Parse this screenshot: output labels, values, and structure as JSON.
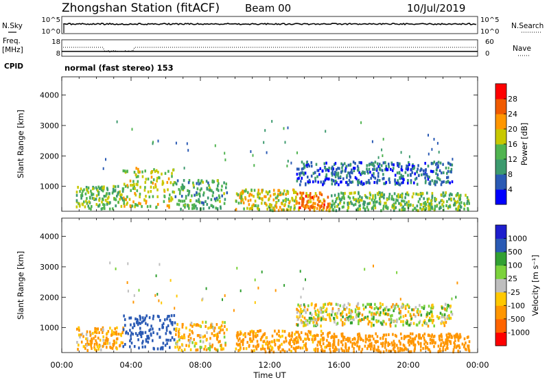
{
  "header": {
    "title": "Zhongshan Station (fitACF)",
    "beam": "Beam 00",
    "date": "10/Jul/2019"
  },
  "labels": {
    "nsky": "N.Sky",
    "freq": "Freq.",
    "mhz": "[MHz]",
    "cpid": "CPID",
    "nsearch": "N.Search",
    "nave": "Nave",
    "mode": "normal (fast stereo) 153",
    "sky_tick_hi": "10^5",
    "sky_tick_lo": "10^0",
    "freq_tick_hi": "18",
    "freq_tick_lo": "8",
    "nave_tick_hi": "60",
    "nave_tick_lo": "0"
  },
  "colors": {
    "power": [
      "#0000ff",
      "#2a5ab4",
      "#3c9a6e",
      "#50b450",
      "#c8c800",
      "#ff9600",
      "#f05a00",
      "#ff0000"
    ],
    "velocity": [
      "#ff0000",
      "#ff6400",
      "#ff9600",
      "#ffc800",
      "#bebebe",
      "#7cd23c",
      "#32a032",
      "#2a5ab4",
      "#1e1ecd"
    ]
  },
  "chart_data": [
    {
      "type": "heatmap",
      "name": "power",
      "ylabel": "Slant Range [km]",
      "xlabel": "",
      "ylim": [
        180,
        4600
      ],
      "yticks": [
        1000,
        2000,
        3000,
        4000
      ],
      "x_tick_labels": [
        "00:00",
        "04:00",
        "08:00",
        "12:00",
        "16:00",
        "20:00",
        "00:00"
      ],
      "colorbar": {
        "label": "Power [dB]",
        "ticks": [
          "4",
          "8",
          "12",
          "16",
          "20",
          "24",
          "28"
        ],
        "range": [
          0,
          30
        ]
      },
      "echo_regions": [
        {
          "t_start": 0.8,
          "t_end": 3.5,
          "r_min": 250,
          "r_max": 1000,
          "level": 14
        },
        {
          "t_start": 3.5,
          "t_end": 6.5,
          "r_min": 300,
          "r_max": 1600,
          "level": 17
        },
        {
          "t_start": 6.5,
          "t_end": 9.5,
          "r_min": 250,
          "r_max": 1200,
          "level": 12
        },
        {
          "t_start": 10.0,
          "t_end": 13.5,
          "r_min": 200,
          "r_max": 900,
          "level": 18
        },
        {
          "t_start": 13.5,
          "t_end": 15.5,
          "r_min": 200,
          "r_max": 800,
          "level": 24
        },
        {
          "t_start": 13.5,
          "t_end": 22.5,
          "r_min": 1050,
          "r_max": 1800,
          "level": 7
        },
        {
          "t_start": 15.5,
          "t_end": 23.5,
          "r_min": 200,
          "r_max": 800,
          "level": 14
        }
      ]
    },
    {
      "type": "heatmap",
      "name": "velocity",
      "ylabel": "Slant Range [km]",
      "xlabel": "Time UT",
      "ylim": [
        180,
        4600
      ],
      "yticks": [
        1000,
        2000,
        3000,
        4000
      ],
      "x_tick_labels": [
        "00:00",
        "04:00",
        "08:00",
        "12:00",
        "16:00",
        "20:00",
        "00:00"
      ],
      "colorbar": {
        "label": "Velocity [m s⁻¹]",
        "ticks": [
          "1000",
          "500",
          "100",
          "25",
          "-25",
          "-100",
          "-500",
          "-1000"
        ],
        "range": [
          -1000,
          1000
        ]
      },
      "echo_regions": [
        {
          "t_start": 0.8,
          "t_end": 3.5,
          "r_min": 250,
          "r_max": 1000,
          "level": -150
        },
        {
          "t_start": 3.5,
          "t_end": 6.5,
          "r_min": 300,
          "r_max": 1400,
          "level": 800
        },
        {
          "t_start": 6.5,
          "t_end": 9.5,
          "r_min": 250,
          "r_max": 1200,
          "level": -100
        },
        {
          "t_start": 10.0,
          "t_end": 15.5,
          "r_min": 200,
          "r_max": 900,
          "level": -200
        },
        {
          "t_start": 13.5,
          "t_end": 22.5,
          "r_min": 1050,
          "r_max": 1800,
          "level": 0
        },
        {
          "t_start": 15.5,
          "t_end": 23.5,
          "r_min": 200,
          "r_max": 800,
          "level": -250
        }
      ]
    }
  ]
}
